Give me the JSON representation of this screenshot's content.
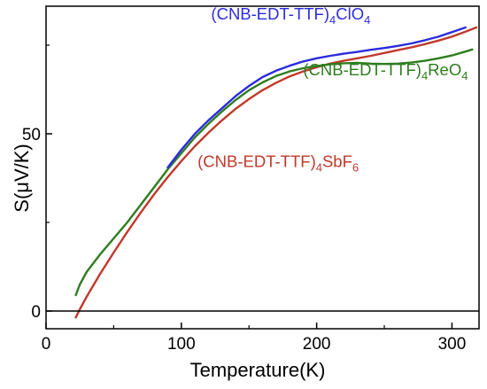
{
  "chart_data": {
    "type": "line",
    "title": "",
    "xlabel": "Temperature(K)",
    "ylabel": "S(μV/K)",
    "xlim": [
      0,
      320
    ],
    "ylim": [
      -5,
      86
    ],
    "xticks": [
      {
        "value": 0,
        "label": "0"
      },
      {
        "value": 100,
        "label": "100"
      },
      {
        "value": 200,
        "label": "200"
      },
      {
        "value": 300,
        "label": "300"
      }
    ],
    "yticks": [
      {
        "value": 0,
        "label": "0"
      },
      {
        "value": 50,
        "label": "50"
      }
    ],
    "zero_line": true,
    "grid": false,
    "legend": "inline labels",
    "series": [
      {
        "name": "(CNB-EDT-TTF)4ClO4",
        "label_main": "(CNB-EDT-TTF)",
        "label_sub1": "4",
        "label_mid": "ClO",
        "label_sub2": "4",
        "label_end": "",
        "color": "#2b2be0",
        "x": [
          90,
          100,
          110,
          120,
          130,
          140,
          150,
          160,
          170,
          180,
          190,
          200,
          210,
          220,
          230,
          240,
          250,
          260,
          270,
          280,
          290,
          300,
          310
        ],
        "y": [
          40.5,
          45.5,
          50,
          53.8,
          57.2,
          60.6,
          63.5,
          66,
          67.8,
          69.2,
          70.4,
          71.3,
          72,
          72.6,
          73.1,
          73.7,
          74.2,
          74.8,
          75.5,
          76.4,
          77.4,
          78.7,
          80
        ]
      },
      {
        "name": "(CNB-EDT-TTF)4ReO4",
        "label_main": "(CNB-EDT-TTF)",
        "label_sub1": "4",
        "label_mid": "ReO",
        "label_sub2": "4",
        "label_end": "",
        "color": "#2e7d1f",
        "x": [
          22,
          25,
          30,
          40,
          50,
          60,
          70,
          80,
          90,
          100,
          110,
          120,
          130,
          140,
          150,
          160,
          170,
          180,
          190,
          200,
          210,
          220,
          230,
          240,
          250,
          260,
          270,
          280,
          290,
          300,
          310,
          315
        ],
        "y": [
          4.5,
          7.5,
          11,
          16,
          20.5,
          25,
          30,
          35,
          40,
          44.5,
          49,
          52.8,
          56.3,
          59.5,
          62.3,
          64.5,
          66.3,
          67.6,
          68.5,
          69.1,
          69.6,
          69.9,
          70,
          69.8,
          69.7,
          69.8,
          70.1,
          70.6,
          71.3,
          72.1,
          73.2,
          73.8
        ]
      },
      {
        "name": "(CNB-EDT-TTF)4SbF6",
        "label_main": "(CNB-EDT-TTF)",
        "label_sub1": "4",
        "label_mid": "SbF",
        "label_sub2": "6",
        "label_end": "",
        "color": "#c0392b",
        "x": [
          22,
          25,
          30,
          40,
          50,
          60,
          70,
          80,
          90,
          100,
          110,
          120,
          130,
          140,
          150,
          160,
          170,
          180,
          190,
          200,
          210,
          220,
          230,
          240,
          250,
          260,
          270,
          280,
          290,
          300,
          310,
          318
        ],
        "y": [
          -1.8,
          0.5,
          4,
          10.5,
          16.5,
          22.3,
          27.8,
          33,
          37.8,
          42.3,
          46.5,
          50.3,
          53.8,
          57,
          59.8,
          62.3,
          64.4,
          66.2,
          67.6,
          68.8,
          69.8,
          70.6,
          71.3,
          72,
          72.8,
          73.6,
          74.4,
          75.3,
          76.3,
          77.4,
          78.8,
          80
        ]
      }
    ]
  }
}
